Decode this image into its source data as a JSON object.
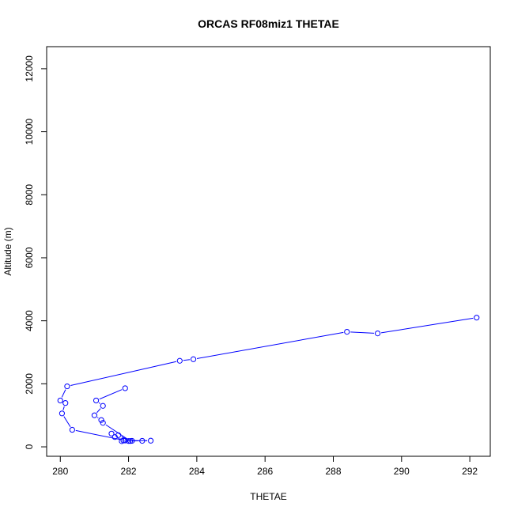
{
  "chart_data": {
    "type": "line",
    "title": "ORCAS RF08miz1 THETAE",
    "xlabel": "THETAE",
    "ylabel": "Altitude (m)",
    "xlim": [
      279.6,
      292.6
    ],
    "ylim": [
      -300,
      12700
    ],
    "xticks": [
      280,
      282,
      284,
      286,
      288,
      290,
      292
    ],
    "yticks": [
      0,
      2000,
      4000,
      6000,
      8000,
      10000,
      12000
    ],
    "grid": false,
    "series": [
      {
        "color": "#0000ff",
        "marker": "open-circle",
        "points": [
          [
            292.2,
            4100
          ],
          [
            289.3,
            3600
          ],
          [
            288.4,
            3650
          ],
          [
            283.9,
            2780
          ],
          [
            283.5,
            2730
          ],
          [
            280.2,
            1920
          ],
          [
            280.0,
            1470
          ],
          [
            280.15,
            1390
          ],
          [
            280.05,
            1060
          ],
          [
            280.35,
            540
          ],
          [
            281.9,
            200
          ],
          [
            282.1,
            190
          ],
          [
            281.8,
            180
          ],
          [
            282.0,
            185
          ],
          [
            282.4,
            190
          ],
          [
            282.65,
            195
          ],
          [
            281.85,
            200
          ],
          [
            281.6,
            310
          ],
          [
            281.5,
            420
          ],
          [
            281.7,
            370
          ],
          [
            282.05,
            185
          ],
          [
            281.25,
            760
          ],
          [
            281.2,
            850
          ],
          [
            281.0,
            1000
          ],
          [
            281.25,
            1300
          ],
          [
            281.05,
            1470
          ],
          [
            281.9,
            1860
          ]
        ]
      }
    ]
  }
}
